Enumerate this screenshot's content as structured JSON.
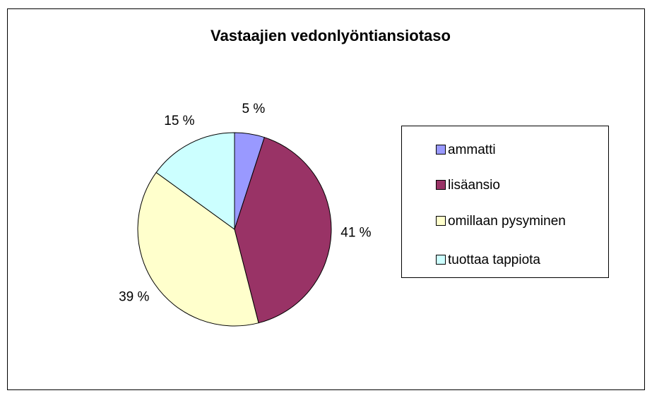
{
  "chart_data": {
    "type": "pie",
    "title": "Vastaajien vedonlyöntiansiotaso",
    "categories": [
      "ammatti",
      "lisäansio",
      "omillaan pysyminen",
      "tuottaa tappiota"
    ],
    "values": [
      5,
      41,
      39,
      15
    ],
    "value_labels": [
      "5 %",
      "41 %",
      "39 %",
      "15 %"
    ],
    "colors": [
      "#9999ff",
      "#993366",
      "#ffffcc",
      "#ccffff"
    ],
    "legend": "right"
  }
}
